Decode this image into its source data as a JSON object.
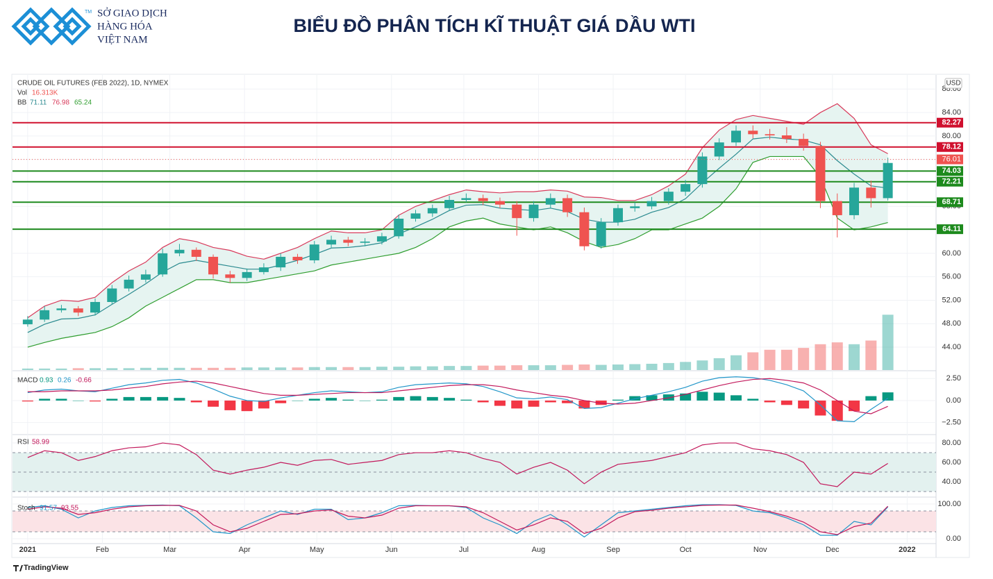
{
  "header": {
    "logo_lines": [
      "SỞ GIAO DỊCH",
      "HÀNG HÓA",
      "VIỆT NAM"
    ],
    "trademark": "TM",
    "title": "BIỂU ĐỒ PHÂN TÍCH KĨ THUẬT GIÁ DẦU WTI"
  },
  "footer": {
    "brand": "TradingView"
  },
  "chart_data": [
    {
      "type": "candlestick",
      "title": "CRUDE OIL FUTURES (FEB 2022), 1D, NYMEX",
      "currency": "USD",
      "x": [
        0,
        7,
        14,
        21,
        28,
        35,
        42,
        49,
        56,
        63,
        70,
        77,
        84,
        91,
        98,
        105,
        112,
        119,
        126,
        133,
        140,
        147,
        154,
        161,
        168,
        175,
        182,
        189,
        196,
        203,
        210,
        217,
        224,
        231,
        238,
        245,
        252,
        259,
        266,
        273,
        280,
        287,
        294,
        301,
        308,
        315,
        322,
        329,
        336,
        343,
        350,
        357
      ],
      "open": [
        47.9,
        48.7,
        50.3,
        50.6,
        49.9,
        51.7,
        54.0,
        55.5,
        56.4,
        60.0,
        60.6,
        59.4,
        56.4,
        55.8,
        56.8,
        57.6,
        59.4,
        58.8,
        61.5,
        62.3,
        61.8,
        62.0,
        62.9,
        65.9,
        66.8,
        67.7,
        69.1,
        69.4,
        68.9,
        68.3,
        66.0,
        68.3,
        69.4,
        67.0,
        61.2,
        65.3,
        67.7,
        68.0,
        68.9,
        70.5,
        71.8,
        76.5,
        78.9,
        80.9,
        80.3,
        80.1,
        79.5,
        78.3,
        68.9,
        66.5,
        71.2,
        69.4
      ],
      "high": [
        49.3,
        51.0,
        51.2,
        51.0,
        52.3,
        54.6,
        56.2,
        57.2,
        60.8,
        61.6,
        61.0,
        59.8,
        57.0,
        57.4,
        58.3,
        60.0,
        59.9,
        62.1,
        63.0,
        62.8,
        62.6,
        63.5,
        66.6,
        67.4,
        68.3,
        69.8,
        70.2,
        70.0,
        69.5,
        68.9,
        68.9,
        70.2,
        70.0,
        67.8,
        66.0,
        68.3,
        68.7,
        69.6,
        71.1,
        72.5,
        77.2,
        79.6,
        81.8,
        81.8,
        81.2,
        81.5,
        80.4,
        79.0,
        70.2,
        72.0,
        72.4,
        76.3
      ],
      "low": [
        47.5,
        48.3,
        49.9,
        49.3,
        49.4,
        51.3,
        53.5,
        55.0,
        56.0,
        59.5,
        58.7,
        55.7,
        55.0,
        55.3,
        56.4,
        57.0,
        58.2,
        58.3,
        61.0,
        61.2,
        61.2,
        61.5,
        62.5,
        65.4,
        66.2,
        67.2,
        68.7,
        68.2,
        67.7,
        63.0,
        65.4,
        67.7,
        66.2,
        60.5,
        60.8,
        64.7,
        67.1,
        67.5,
        68.3,
        69.8,
        71.2,
        75.9,
        78.3,
        79.6,
        79.4,
        78.8,
        77.5,
        67.7,
        62.7,
        65.8,
        67.8,
        69.0
      ],
      "close": [
        48.7,
        50.3,
        50.6,
        49.9,
        51.7,
        54.0,
        55.5,
        56.4,
        60.0,
        60.6,
        59.4,
        56.4,
        55.8,
        56.8,
        57.6,
        59.4,
        58.8,
        61.5,
        62.3,
        61.8,
        62.0,
        62.9,
        65.9,
        66.8,
        67.7,
        69.1,
        69.4,
        68.9,
        68.3,
        66.0,
        68.3,
        69.4,
        67.0,
        61.2,
        65.3,
        67.7,
        68.0,
        68.9,
        70.5,
        71.8,
        76.5,
        78.9,
        80.9,
        80.3,
        80.1,
        79.5,
        78.3,
        68.9,
        66.5,
        71.2,
        69.4,
        75.4
      ],
      "up_color": "#26a69a",
      "down_color": "#ef5350",
      "bollinger": {
        "label": "BB",
        "legend": [
          71.11,
          76.98,
          65.24
        ],
        "basis_color": "#2a8a8f",
        "upper_color": "#d8395a",
        "lower_color": "#2e9d2e",
        "fill": "#e6f4f1",
        "basis": [
          46.5,
          47.9,
          48.8,
          48.9,
          49.5,
          51.3,
          53,
          54.8,
          56.8,
          58.3,
          58.8,
          58.3,
          57.8,
          57.3,
          57.3,
          58,
          58.8,
          59.8,
          60.9,
          61,
          61.3,
          61.8,
          63.3,
          64.5,
          65.8,
          67.3,
          68.2,
          68.3,
          67.7,
          67.5,
          67.3,
          67.7,
          67.1,
          65.8,
          65.3,
          65.3,
          65.8,
          67,
          67.8,
          69.3,
          72,
          74.5,
          76.9,
          79.5,
          79.8,
          79.5,
          79.3,
          78.5,
          75.8,
          73.5,
          71.5,
          71.11
        ],
        "upper": [
          49.0,
          51.0,
          52.0,
          51.8,
          52.5,
          55.0,
          57.0,
          58.5,
          61.0,
          62.5,
          62.0,
          61.0,
          60.5,
          59.5,
          59.0,
          60.0,
          61.0,
          62.5,
          63.8,
          63.5,
          63.5,
          64.0,
          66.5,
          68.0,
          69.0,
          70.0,
          70.8,
          70.5,
          70.3,
          70.5,
          70.5,
          70.8,
          70.6,
          69.6,
          69.5,
          69.0,
          69.0,
          70.0,
          71.5,
          73.5,
          78.0,
          81.0,
          82.8,
          83.5,
          83.0,
          82.5,
          82.0,
          84.0,
          85.5,
          83.0,
          78.5,
          76.98
        ],
        "lower": [
          44.0,
          44.8,
          45.5,
          46.0,
          46.5,
          47.5,
          49.0,
          51.0,
          52.5,
          54.0,
          55.5,
          55.5,
          55.0,
          55.0,
          55.5,
          56.0,
          56.5,
          57.0,
          58.0,
          58.5,
          59.0,
          59.5,
          60.0,
          61.0,
          62.5,
          64.5,
          65.5,
          66.0,
          65.0,
          64.5,
          64.0,
          64.5,
          63.5,
          62.0,
          61.0,
          61.5,
          62.5,
          64.0,
          64.0,
          65.0,
          66.0,
          68.0,
          71.0,
          75.5,
          76.5,
          76.5,
          76.5,
          73.0,
          66.0,
          64.0,
          64.5,
          65.24
        ]
      },
      "volume": {
        "label": "Vol",
        "last": "16.313K",
        "ylim": [
          0,
          800
        ],
        "values": [
          4,
          4,
          4,
          5,
          5,
          5,
          5,
          6,
          6,
          6,
          6,
          6,
          6,
          7,
          7,
          7,
          7,
          8,
          8,
          8,
          8,
          9,
          9,
          10,
          10,
          11,
          11,
          12,
          12,
          13,
          13,
          13,
          14,
          15,
          14,
          15,
          16,
          17,
          19,
          22,
          26,
          32,
          40,
          48,
          55,
          55,
          60,
          70,
          75,
          70,
          80,
          150
        ]
      },
      "levels": [
        {
          "value": 82.27,
          "color": "#d0102e"
        },
        {
          "value": 78.12,
          "color": "#d0102e"
        },
        {
          "value": 74.03,
          "color": "#1d8a1d"
        },
        {
          "value": 72.21,
          "color": "#1d8a1d"
        },
        {
          "value": 68.71,
          "color": "#1d8a1d"
        },
        {
          "value": 64.11,
          "color": "#1d8a1d"
        }
      ],
      "last_price": {
        "value": 76.01,
        "color": "#ef5350"
      },
      "xlim": [
        -6.3,
        377
      ],
      "xticks": [
        {
          "value": 0,
          "label": "2021"
        },
        {
          "value": 31,
          "label": "Feb"
        },
        {
          "value": 59,
          "label": "Mar"
        },
        {
          "value": 90,
          "label": "Apr"
        },
        {
          "value": 120,
          "label": "May"
        },
        {
          "value": 151,
          "label": "Jun"
        },
        {
          "value": 181,
          "label": "Jul"
        },
        {
          "value": 212,
          "label": "Aug"
        },
        {
          "value": 243,
          "label": "Sep"
        },
        {
          "value": 273,
          "label": "Oct"
        },
        {
          "value": 304,
          "label": "Nov"
        },
        {
          "value": 334,
          "label": "Dec"
        },
        {
          "value": 365,
          "label": "2022"
        }
      ],
      "ylim": [
        40.1,
        90.4
      ],
      "yticks": [
        {
          "value": 44,
          "label": "44.00"
        },
        {
          "value": 48,
          "label": "48.00"
        },
        {
          "value": 52,
          "label": "52.00"
        },
        {
          "value": 56,
          "label": "56.00"
        },
        {
          "value": 60,
          "label": "60.00"
        },
        {
          "value": 64,
          "label": "64.00"
        },
        {
          "value": 68,
          "label": "68.00"
        },
        {
          "value": 72,
          "label": "72.00"
        },
        {
          "value": 76,
          "label": "76.00"
        },
        {
          "value": 80,
          "label": "80.00"
        },
        {
          "value": 84,
          "label": "84.00"
        },
        {
          "value": 88,
          "label": "88.00"
        }
      ],
      "grid": true
    },
    {
      "type": "macd",
      "title": "MACD",
      "legend": [
        0.93,
        0.26,
        -0.66
      ],
      "hist_up": "#089981",
      "hist_down": "#f23645",
      "macd_color": "#2196c9",
      "signal_color": "#c2185b",
      "histogram": [
        -0.1,
        0.2,
        0.2,
        0.0,
        -0.1,
        0.2,
        0.4,
        0.4,
        0.4,
        0.3,
        -0.2,
        -0.7,
        -1.1,
        -1.2,
        -0.9,
        -0.3,
        0.0,
        0.2,
        0.3,
        0.1,
        0.0,
        0.1,
        0.4,
        0.5,
        0.4,
        0.3,
        0.1,
        -0.2,
        -0.6,
        -0.9,
        -0.7,
        -0.2,
        -0.3,
        -0.9,
        -0.5,
        0.1,
        0.5,
        0.6,
        0.7,
        0.8,
        1.0,
        0.9,
        0.6,
        0.2,
        -0.2,
        -0.5,
        -0.9,
        -1.7,
        -2.3,
        -1.2,
        0.5,
        0.93
      ],
      "macd": [
        0.9,
        1.2,
        1.3,
        1.1,
        1.0,
        1.4,
        1.8,
        2.0,
        2.3,
        2.4,
        2.0,
        1.3,
        0.5,
        0.0,
        -0.1,
        0.3,
        0.6,
        0.9,
        1.1,
        1.0,
        0.9,
        1.0,
        1.5,
        1.8,
        1.9,
        2.0,
        1.9,
        1.6,
        1.0,
        0.3,
        0.2,
        0.4,
        0.1,
        -0.9,
        -0.8,
        -0.3,
        0.2,
        0.6,
        1.0,
        1.5,
        2.2,
        2.6,
        2.7,
        2.6,
        2.3,
        1.8,
        1.1,
        -0.5,
        -2.3,
        -2.4,
        -1.0,
        0.26
      ],
      "signal": [
        1.0,
        1.0,
        1.1,
        1.1,
        1.1,
        1.2,
        1.4,
        1.6,
        1.9,
        2.1,
        2.2,
        2.0,
        1.6,
        1.2,
        0.8,
        0.6,
        0.6,
        0.7,
        0.8,
        0.9,
        0.9,
        0.9,
        1.1,
        1.3,
        1.5,
        1.7,
        1.8,
        1.8,
        1.6,
        1.2,
        0.9,
        0.6,
        0.4,
        0.0,
        -0.3,
        -0.4,
        -0.3,
        0.0,
        0.3,
        0.7,
        1.2,
        1.7,
        2.1,
        2.4,
        2.5,
        2.3,
        2.0,
        1.2,
        0.0,
        -1.2,
        -1.5,
        -0.66
      ],
      "ylim": [
        -3.79,
        3.31
      ],
      "yticks": [
        {
          "value": 2.5,
          "label": "2.50"
        },
        {
          "value": 0,
          "label": "0.00"
        },
        {
          "value": -2.5,
          "label": "−2.50"
        }
      ]
    },
    {
      "type": "line",
      "title": "RSI",
      "legend": [
        58.99
      ],
      "color": "#c2185b",
      "band_fill": "#e3f1ef",
      "values": [
        65,
        72,
        70,
        62,
        66,
        72,
        75,
        76,
        80,
        78,
        68,
        52,
        48,
        52,
        55,
        60,
        57,
        62,
        63,
        58,
        60,
        62,
        68,
        70,
        70,
        72,
        70,
        64,
        60,
        48,
        55,
        60,
        52,
        38,
        50,
        58,
        60,
        62,
        66,
        70,
        78,
        80,
        80,
        74,
        72,
        68,
        60,
        38,
        35,
        50,
        48,
        58.99
      ],
      "bands": [
        70,
        50,
        30
      ],
      "ylim": [
        25,
        87.9
      ],
      "yticks": [
        {
          "value": 80,
          "label": "80.00"
        },
        {
          "value": 60,
          "label": "60.00"
        },
        {
          "value": 40,
          "label": "40.00"
        }
      ]
    },
    {
      "type": "stoch",
      "title": "Stoch",
      "legend": [
        91.57,
        93.55
      ],
      "k_color": "#2196c9",
      "d_color": "#c2185b",
      "band_fill": "#fbe3e6",
      "k": [
        90,
        95,
        85,
        60,
        80,
        90,
        95,
        96,
        97,
        95,
        60,
        20,
        15,
        40,
        60,
        80,
        70,
        85,
        85,
        55,
        60,
        75,
        95,
        96,
        95,
        95,
        90,
        60,
        40,
        15,
        50,
        70,
        40,
        5,
        40,
        75,
        80,
        85,
        90,
        95,
        98,
        98,
        96,
        80,
        75,
        60,
        40,
        10,
        10,
        50,
        40,
        91.57
      ],
      "d": [
        85,
        92,
        88,
        70,
        75,
        85,
        92,
        95,
        96,
        96,
        80,
        40,
        20,
        30,
        50,
        70,
        72,
        80,
        83,
        65,
        60,
        68,
        88,
        95,
        95,
        95,
        92,
        75,
        50,
        25,
        40,
        60,
        50,
        15,
        30,
        60,
        78,
        82,
        88,
        92,
        96,
        97,
        97,
        88,
        78,
        65,
        48,
        20,
        12,
        35,
        45,
        93.55
      ],
      "bands": [
        80,
        20
      ],
      "ylim": [
        -14,
        118
      ],
      "yticks": [
        {
          "value": 100,
          "label": "100.00"
        },
        {
          "value": 0,
          "label": "0.00"
        }
      ]
    }
  ]
}
